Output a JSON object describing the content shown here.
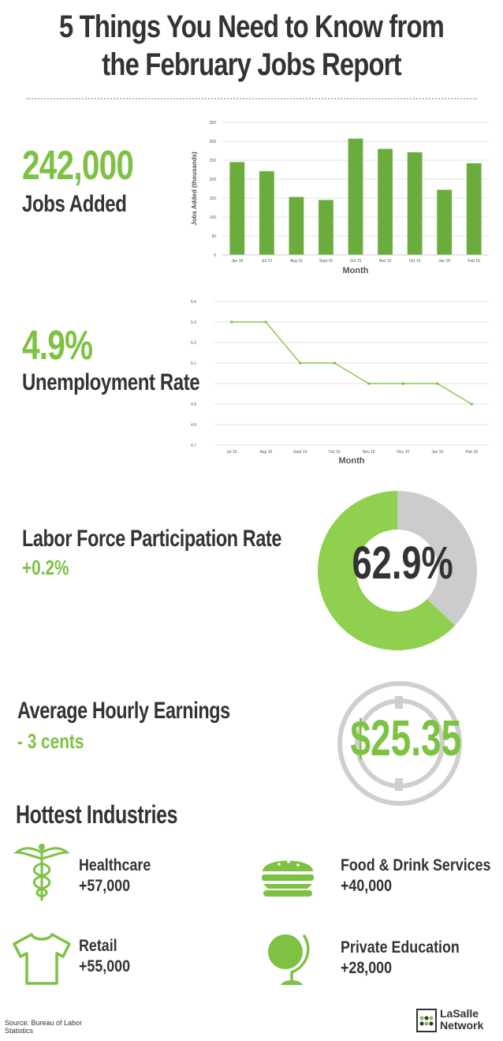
{
  "title": {
    "line1": "5 Things You Need to Know from",
    "line2": "the February Jobs Report"
  },
  "jobs": {
    "value": "242,000",
    "label": "Jobs Added"
  },
  "unemployment": {
    "value": "4.9%",
    "label": "Unemployment Rate"
  },
  "participation": {
    "label": "Labor Force Participation Rate",
    "change": "+0.2%",
    "value": "62.9%",
    "percent": 62.9
  },
  "earnings": {
    "label": "Average Hourly Earnings",
    "change": "- 3 cents",
    "value": "$25.35"
  },
  "industries": {
    "heading": "Hottest Industries",
    "items": [
      {
        "name": "Healthcare",
        "value": "+57,000",
        "icon": "caduceus-icon"
      },
      {
        "name": "Food & Drink Services",
        "value": "+40,000",
        "icon": "burger-icon"
      },
      {
        "name": "Retail",
        "value": "+55,000",
        "icon": "tshirt-icon"
      },
      {
        "name": "Private Education",
        "value": "+28,000",
        "icon": "globe-icon"
      }
    ]
  },
  "source": "Source: Bureau of Labor Statistics",
  "logo": {
    "line1": "LaSalle",
    "line2": "Network"
  },
  "colors": {
    "green": "#7dc242",
    "bar_green": "#6aad3d",
    "gray": "#cccccc",
    "dark": "#333333"
  },
  "chart_data": [
    {
      "type": "bar",
      "categories": [
        "Jan 15",
        "Jul 15",
        "Aug 15",
        "Sept 15",
        "Oct 15",
        "Nov 15",
        "Oct 15",
        "Jan 16",
        "Feb 16"
      ],
      "values": [
        245,
        221,
        153,
        145,
        307,
        280,
        271,
        172,
        242
      ],
      "xlabel": "Month",
      "ylabel": "Jobs Added (thousands)",
      "ylim": [
        0,
        350
      ],
      "yticks": [
        0,
        50,
        100,
        150,
        200,
        250,
        300,
        350
      ],
      "grid": true
    },
    {
      "type": "line",
      "categories": [
        "Jul 15",
        "Aug 15",
        "Sept 15",
        "Oct 15",
        "Nov 15",
        "Dec 15",
        "Jan 16",
        "Feb 16"
      ],
      "values": [
        5.3,
        5.3,
        5.1,
        5.1,
        5.0,
        5.0,
        5.0,
        4.9
      ],
      "xlabel": "Month",
      "ylabel": "",
      "ylim": [
        4.7,
        5.4
      ],
      "yticks": [
        "4.7",
        "4.8",
        "4.9",
        "5",
        "5.1",
        "5.2",
        "5.3",
        "5.4"
      ],
      "grid": true
    }
  ]
}
